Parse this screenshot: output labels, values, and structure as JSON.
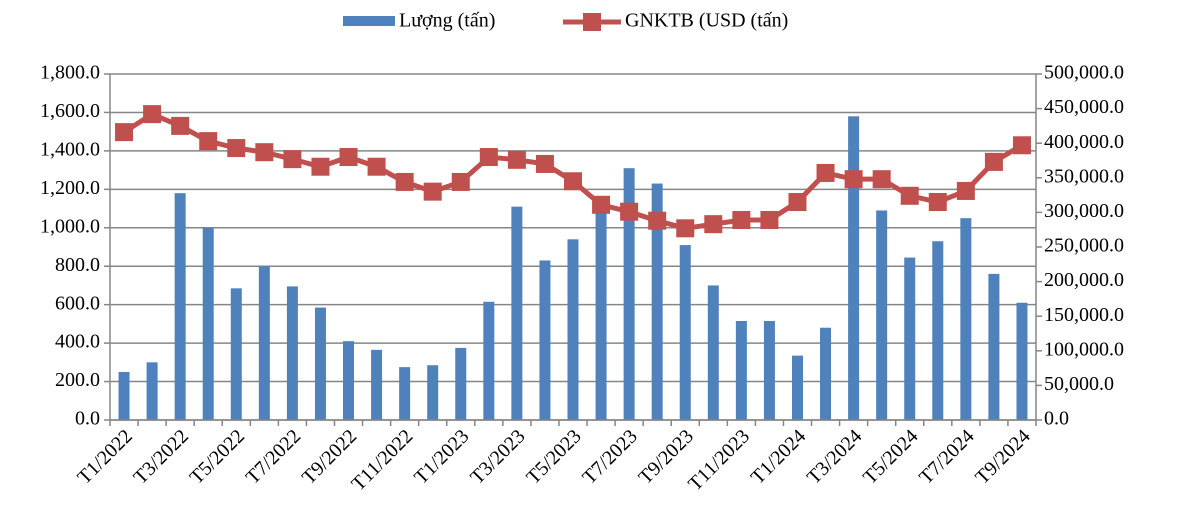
{
  "chart_data": {
    "type": "bar_line",
    "categories": [
      "T1/2022",
      null,
      "T3/2022",
      null,
      "T5/2022",
      null,
      "T7/2022",
      null,
      "T9/2022",
      null,
      "T11/2022",
      null,
      "T1/2023",
      null,
      "T3/2023",
      null,
      "T5/2023",
      null,
      "T7/2023",
      null,
      "T9/2023",
      null,
      "T11/2023",
      null,
      "T1/2024",
      null,
      "T3/2024",
      null,
      "T5/2024",
      null,
      "T7/2024",
      null,
      "T9/2024"
    ],
    "series": [
      {
        "name": "Lượng (tấn)",
        "type": "bar",
        "color": "#4f81bd",
        "values": [
          250,
          300,
          1180,
          1000,
          685,
          800,
          695,
          585,
          410,
          365,
          275,
          285,
          375,
          615,
          1110,
          830,
          940,
          1100,
          1310,
          1230,
          910,
          700,
          515,
          515,
          335,
          480,
          1580,
          1090,
          845,
          930,
          1050,
          760,
          610
        ]
      },
      {
        "name": "GNKTB (USD (tấn)",
        "type": "line",
        "axis": "y2",
        "color": "#c0504d",
        "values": [
          416000,
          442000,
          425000,
          403000,
          393000,
          387000,
          377000,
          366000,
          380000,
          366000,
          344000,
          330000,
          344000,
          380000,
          376000,
          370000,
          345000,
          311000,
          301000,
          288000,
          277000,
          283000,
          289000,
          289000,
          315000,
          357000,
          348000,
          348000,
          324000,
          315000,
          331000,
          373000,
          397000
        ]
      }
    ],
    "ylim": [
      0,
      1800
    ],
    "yticks": [
      {
        "value": 0,
        "label": "0.0"
      },
      {
        "value": 200,
        "label": "200.0"
      },
      {
        "value": 400,
        "label": "400.0"
      },
      {
        "value": 600,
        "label": "600.0"
      },
      {
        "value": 800,
        "label": "800.0"
      },
      {
        "value": 1000,
        "label": "1,000.0"
      },
      {
        "value": 1200,
        "label": "1,200.0"
      },
      {
        "value": 1400,
        "label": "1,400.0"
      },
      {
        "value": 1600,
        "label": "1,600.0"
      },
      {
        "value": 1800,
        "label": "1,800.0"
      }
    ],
    "y2lim": [
      0,
      500000
    ],
    "y2ticks": [
      {
        "value": 0,
        "label": "0.0"
      },
      {
        "value": 50000,
        "label": "50,000.0"
      },
      {
        "value": 100000,
        "label": "100,000.0"
      },
      {
        "value": 150000,
        "label": "150,000.0"
      },
      {
        "value": 200000,
        "label": "200,000.0"
      },
      {
        "value": 250000,
        "label": "250,000.0"
      },
      {
        "value": 300000,
        "label": "300,000.0"
      },
      {
        "value": 350000,
        "label": "350,000.0"
      },
      {
        "value": 400000,
        "label": "400,000.0"
      },
      {
        "value": 450000,
        "label": "450,000.0"
      },
      {
        "value": 500000,
        "label": "500,000.0"
      }
    ],
    "grid": true,
    "legend": "top"
  }
}
